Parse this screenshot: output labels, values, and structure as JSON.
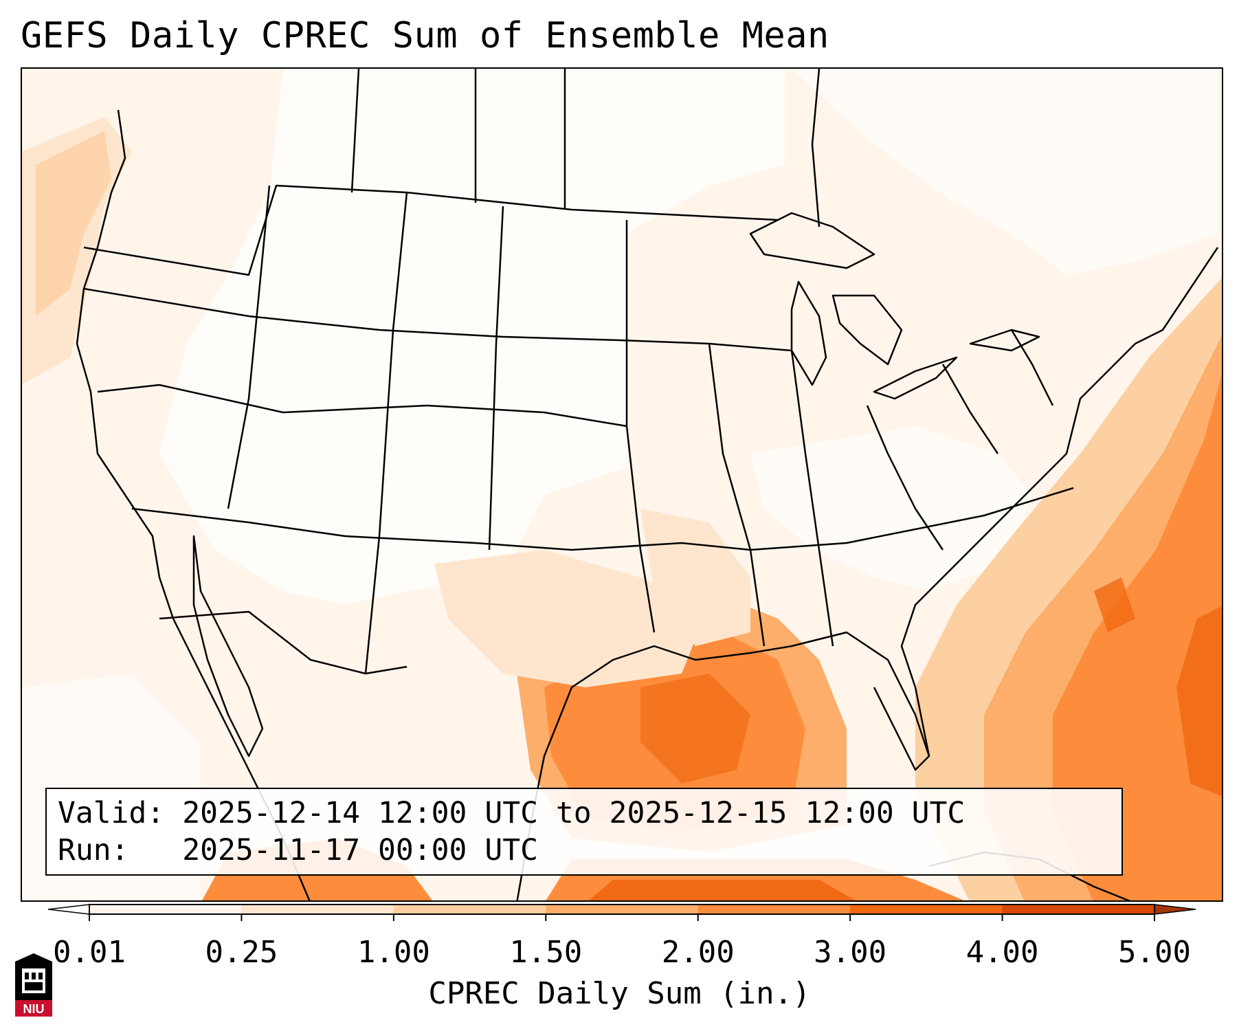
{
  "title": "GEFS Daily CPREC Sum of Ensemble Mean",
  "valid_label": "Valid:",
  "valid_value": "2025-12-14 12:00 UTC to 2025-12-15 12:00 UTC",
  "run_label": "Run:",
  "run_value": "2025-11-17 00:00 UTC",
  "colorbar": {
    "ticks": [
      "0.01",
      "0.25",
      "1.00",
      "1.50",
      "2.00",
      "3.00",
      "4.00",
      "5.00"
    ],
    "title": "CPREC Daily Sum (in.)",
    "colors": [
      "#fff5eb",
      "#fee6ce",
      "#fdd0a2",
      "#fdae6b",
      "#fd8d3c",
      "#f16913",
      "#d94801",
      "#a63603"
    ],
    "under_color": "#ffffff",
    "over_color": "#a63603"
  },
  "colors": {
    "light": "#fff5eb",
    "light2": "#fee6ce",
    "mid": "#fdd0a2",
    "mid2": "#fdae6b",
    "orange": "#fd8d3c",
    "dark": "#f16913",
    "darker": "#d94801"
  },
  "logo": {
    "text": "NIU",
    "icon": "university-building-icon"
  }
}
